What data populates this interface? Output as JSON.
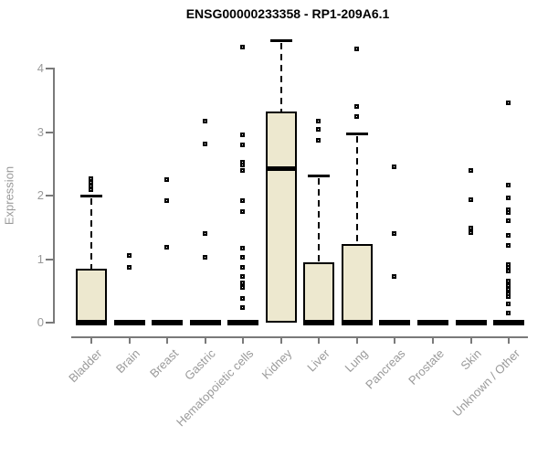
{
  "colors": {
    "box_fill": "#EDE8CF",
    "box_border": "#000000",
    "axis": "#7a7a7a",
    "label_text": "#9a9a9a",
    "title_text": "#000000",
    "background": "#ffffff"
  },
  "chart_data": {
    "type": "boxplot",
    "title": "ENSG00000233358 - RP1-209A6.1",
    "ylabel": "Expression",
    "xlabel": "",
    "ylim": [
      0,
      4.5
    ],
    "yticks": [
      0,
      1,
      2,
      3,
      4
    ],
    "grid": false,
    "legend": false,
    "categories": [
      "Bladder",
      "Brain",
      "Breast",
      "Gastric",
      "Hematopoietic cells",
      "Kidney",
      "Liver",
      "Lung",
      "Pancreas",
      "Prostate",
      "Skin",
      "Unknown / Other"
    ],
    "series": [
      {
        "name": "Bladder",
        "q1": 0,
        "median": 0,
        "q3": 0.85,
        "whisker_low": 0,
        "whisker_high": 2.0,
        "outliers": [
          2.08,
          2.14,
          2.2,
          2.26
        ]
      },
      {
        "name": "Brain",
        "q1": 0,
        "median": 0,
        "q3": 0,
        "whisker_low": 0,
        "whisker_high": 0,
        "outliers": [
          0.87,
          1.05
        ]
      },
      {
        "name": "Breast",
        "q1": 0,
        "median": 0,
        "q3": 0,
        "whisker_low": 0,
        "whisker_high": 0,
        "outliers": [
          1.18,
          1.91,
          2.24
        ]
      },
      {
        "name": "Gastric",
        "q1": 0,
        "median": 0,
        "q3": 0,
        "whisker_low": 0,
        "whisker_high": 0,
        "outliers": [
          1.02,
          1.4,
          2.81,
          3.16
        ]
      },
      {
        "name": "Hematopoietic cells",
        "q1": 0,
        "median": 0,
        "q3": 0,
        "whisker_low": 0,
        "whisker_high": 0,
        "outliers": [
          0.23,
          0.37,
          0.55,
          0.62,
          0.72,
          0.86,
          1.02,
          1.17,
          1.74,
          1.91,
          2.39,
          2.47,
          2.52,
          2.79,
          2.95,
          4.33
        ]
      },
      {
        "name": "Kidney",
        "q1": 0,
        "median": 2.43,
        "q3": 3.32,
        "whisker_low": 0,
        "whisker_high": 4.45,
        "outliers": []
      },
      {
        "name": "Liver",
        "q1": 0,
        "median": 0,
        "q3": 0.95,
        "whisker_low": 0,
        "whisker_high": 2.32,
        "outliers": [
          2.87,
          3.03,
          3.17
        ]
      },
      {
        "name": "Lung",
        "q1": 0,
        "median": 0,
        "q3": 1.24,
        "whisker_low": 0,
        "whisker_high": 2.98,
        "outliers": [
          3.24,
          3.4,
          4.3
        ]
      },
      {
        "name": "Pancreas",
        "q1": 0,
        "median": 0,
        "q3": 0,
        "whisker_low": 0,
        "whisker_high": 0,
        "outliers": [
          0.72,
          1.39,
          2.45
        ]
      },
      {
        "name": "Prostate",
        "q1": 0,
        "median": 0,
        "q3": 0,
        "whisker_low": 0,
        "whisker_high": 0,
        "outliers": []
      },
      {
        "name": "Skin",
        "q1": 0,
        "median": 0,
        "q3": 0,
        "whisker_low": 0,
        "whisker_high": 0,
        "outliers": [
          1.41,
          1.48,
          1.93,
          2.39
        ]
      },
      {
        "name": "Unknown / Other",
        "q1": 0,
        "median": 0,
        "q3": 0,
        "whisker_low": 0,
        "whisker_high": 0,
        "outliers": [
          0.14,
          0.29,
          0.4,
          0.45,
          0.52,
          0.58,
          0.65,
          0.81,
          0.86,
          0.91,
          1.21,
          1.36,
          1.6,
          1.73,
          1.77,
          1.95,
          2.16,
          3.45
        ]
      }
    ]
  }
}
